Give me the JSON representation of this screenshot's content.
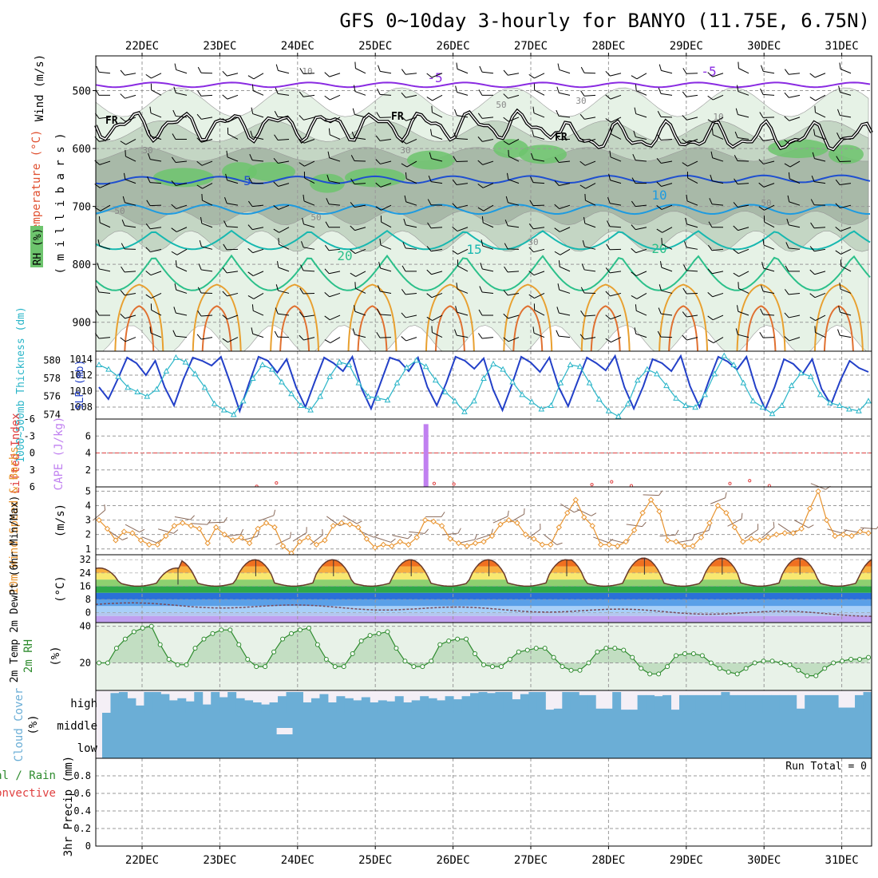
{
  "title": "GFS 0~10day 3-hourly for BANYO (11.75E, 6.75N)",
  "date_labels": [
    "22DEC",
    "23DEC",
    "24DEC",
    "25DEC",
    "26DEC",
    "27DEC",
    "28DEC",
    "29DEC",
    "30DEC",
    "31DEC"
  ],
  "colors": {
    "rh_light": "#e6f2e6",
    "rh_mid": "#c4d6c4",
    "rh_dark": "#a8b9a8",
    "rh_green": "#6dc46d",
    "temp_purple": "#8a2be2",
    "temp_blue_dark": "#1f4fd0",
    "temp_blue": "#1e9be0",
    "temp_teal": "#17b8b0",
    "temp_green": "#2cc08a",
    "temp_orange": "#e8a030",
    "slp": "#2340c8",
    "thickness": "#2ab5c8",
    "lifted": "#e04040",
    "cape": "#c080f0",
    "wind": "#e89430",
    "rh2m": "#2e8b2e",
    "cloud": "#6baed6",
    "precip_green": "#2e8b2e"
  },
  "upper": {
    "ylabel_parts": [
      "RH (%)",
      "Temperature (°C)",
      "Wind (m/s)"
    ],
    "ylabel_unit": "( m i l l i b a r s )",
    "pressure_ticks": [
      500,
      600,
      700,
      800,
      900
    ],
    "ylim": [
      440,
      950
    ],
    "freezing_label": "FR",
    "contour_labels": [
      "-5",
      "-5",
      "5",
      "10",
      "10",
      "15",
      "20",
      "20"
    ],
    "rh_contour_labels": [
      "10",
      "30",
      "30",
      "50",
      "50",
      "50",
      "30",
      "10",
      "50",
      "30"
    ],
    "isotherms": [
      {
        "name": "-5",
        "base_hpa": 490,
        "amp": 4
      },
      {
        "name": "5",
        "base_hpa": 655,
        "amp": 6
      },
      {
        "name": "10",
        "base_hpa": 705,
        "amp": 8
      },
      {
        "name": "15",
        "base_hpa": 758,
        "amp": 16
      },
      {
        "name": "20",
        "base_hpa": 815,
        "amp": 30
      }
    ]
  },
  "slp_panel": {
    "ylabel_left": "1000~500mb Thickness (dm)",
    "ylabel_right": "SLP (mb)",
    "left_ticks": [
      574,
      576,
      578,
      580
    ],
    "right_ticks": [
      1008,
      1010,
      1012,
      1014
    ],
    "slp_range": [
      1006.5,
      1015
    ],
    "thickness_range": [
      573.5,
      581
    ],
    "slp_values": [
      1010.5,
      1009,
      1011.5,
      1014.2,
      1013.5,
      1012,
      1013.8,
      1010.5,
      1008.2,
      1011.5,
      1014.2,
      1013.8,
      1013.2,
      1014.3,
      1011,
      1007.5,
      1011,
      1014.3,
      1013.8,
      1012.3,
      1014,
      1010.5,
      1008,
      1011.2,
      1014.2,
      1013.5,
      1012.5,
      1014.3,
      1010.3,
      1007.8,
      1011,
      1014.2,
      1013.8,
      1012.5,
      1014.2,
      1010.5,
      1008.2,
      1011,
      1014.3,
      1013.8,
      1012.8,
      1014.1,
      1010.2,
      1007.6,
      1010.8,
      1014.3,
      1013.6,
      1012.4,
      1014.2,
      1010.5,
      1008.1,
      1011.2,
      1014.2,
      1013.5,
      1012.6,
      1014.4,
      1010.5,
      1007.8,
      1010.6,
      1014,
      1013.5,
      1012.5,
      1014.4,
      1010.6,
      1008,
      1011.3,
      1014.3,
      1013.7,
      1012.7,
      1014.3,
      1010.4,
      1007.7,
      1010.5,
      1014,
      1013.4,
      1012.2,
      1014,
      1010.3,
      1008.3,
      1011.3,
      1013.8,
      1012.9,
      1012.4
    ],
    "thickness_values": [
      579.5,
      579,
      578.2,
      577,
      576.5,
      576,
      576.8,
      578.8,
      580.3,
      579.8,
      578.5,
      577,
      575.2,
      574.5,
      574,
      575.5,
      578,
      579.5,
      579,
      577.6,
      576.3,
      575,
      574.5,
      576,
      578.2,
      579.8,
      579.5,
      577.5,
      576,
      575.8,
      575.6,
      577.5,
      579.2,
      580,
      579.3,
      577.8,
      576.5,
      575.5,
      574.3,
      575.5,
      578,
      579.6,
      579,
      577.6,
      576.2,
      575.4,
      574.6,
      575,
      577.5,
      579.5,
      579.3,
      577.5,
      575.7,
      574.4,
      573.8,
      575.2,
      577.8,
      579,
      578.5,
      577.2,
      575.8,
      575,
      574.8,
      576.2,
      578.5,
      580.5,
      579.5,
      577.5,
      575.5,
      574.8,
      574.1,
      575,
      577.2,
      578.6,
      578.2,
      576.2,
      575.3,
      575,
      574.6,
      574.4,
      575.5
    ]
  },
  "cape_panel": {
    "ylabel_left": "Lifted Index",
    "ylabel_right": "CAPE (J/kg)",
    "left_ticks": [
      "-6",
      "-3",
      "0",
      "3",
      "6"
    ],
    "right_ticks": [
      "2",
      "4",
      "6"
    ],
    "cape_bars": [
      {
        "index": 17,
        "value": 7.4
      }
    ],
    "lifted_index_points": [
      [
        8,
        5.9
      ],
      [
        9,
        5.3
      ],
      [
        17,
        5.4
      ],
      [
        18,
        5.5
      ],
      [
        25,
        5.6
      ],
      [
        26,
        5.1
      ],
      [
        27,
        5.8
      ],
      [
        32,
        5.4
      ],
      [
        33,
        4.9
      ],
      [
        34,
        5.8
      ],
      [
        41,
        5.8
      ],
      [
        42,
        5.0
      ],
      [
        43,
        5.8
      ]
    ]
  },
  "wind_panel": {
    "ylabel": "10m Wind Speed & Barbs",
    "unit": "(m/s)",
    "ticks": [
      1,
      2,
      3,
      4,
      5
    ],
    "ylim": [
      0.6,
      5.3
    ],
    "values": [
      3,
      2.4,
      1.6,
      2.2,
      2.1,
      1.6,
      1.3,
      1.3,
      1.9,
      2.6,
      2.8,
      2.6,
      2.4,
      1.4,
      2.5,
      2.0,
      1.6,
      1.8,
      1.4,
      2.4,
      2.8,
      2.5,
      1.2,
      0.7,
      1.5,
      1.8,
      1.3,
      1.6,
      2.6,
      2.8,
      2.7,
      2.5,
      1.7,
      1.1,
      1.3,
      1.2,
      1.5,
      1.3,
      1.8,
      3.0,
      2.9,
      2.6,
      1.7,
      1.4,
      1.2,
      1.4,
      1.5,
      1.9,
      2.7,
      3.0,
      2.8,
      2.0,
      1.7,
      1.3,
      1.3,
      2.5,
      3.5,
      4.4,
      3.2,
      2.6,
      1.3,
      1.3,
      1.2,
      1.5,
      2.3,
      3.5,
      4.4,
      3.6,
      1.6,
      1.5,
      1.2,
      1.2,
      1.8,
      2.8,
      4.0,
      3.5,
      2.5,
      1.5,
      1.7,
      1.6,
      1.8,
      2.0,
      2.1,
      2.1,
      2.4,
      3.8,
      5.0,
      3.0,
      1.9,
      2.0,
      1.9,
      2.2,
      2.1
    ]
  },
  "temp_panel": {
    "ylabel": "2m Temp 2m DewPt (6hr Min/Max)",
    "unit": "(°C)",
    "ticks": [
      0,
      8,
      16,
      24,
      32
    ],
    "ylim": [
      -6,
      35
    ],
    "max_per_day": [
      27,
      32,
      32,
      32,
      32,
      32,
      33,
      33,
      33,
      33
    ],
    "min_per_day": [
      18,
      18,
      18,
      18,
      18,
      18,
      18,
      18,
      18,
      18
    ],
    "dewpoint_note": "dewpoint falls from about 5 to -1 over the period"
  },
  "rh_panel": {
    "ylabel": "2m RH",
    "unit": "(%)",
    "ticks": [
      20,
      40
    ],
    "ylim": [
      5,
      42
    ],
    "values": [
      20,
      20,
      28,
      33,
      37,
      39,
      40,
      30,
      22,
      19,
      19,
      28,
      33,
      36,
      38,
      38,
      30,
      22,
      18,
      18,
      26,
      33,
      36,
      38,
      39,
      30,
      22,
      18,
      18,
      25,
      32,
      35,
      36,
      37,
      28,
      21,
      18,
      18,
      21,
      30,
      32,
      33,
      33,
      25,
      19,
      18,
      18,
      22,
      26,
      27,
      28,
      28,
      23,
      18,
      16,
      16,
      20,
      26,
      28,
      28,
      27,
      23,
      17,
      14,
      14,
      18,
      24,
      25,
      25,
      24,
      20,
      17,
      15,
      14,
      17,
      20,
      21,
      21,
      20,
      19,
      16,
      13,
      13,
      17,
      20,
      21,
      22,
      22,
      23
    ]
  },
  "cloud_panel": {
    "ylabel": "Cloud Cover",
    "unit": "(%)",
    "levels": [
      "high",
      "middle",
      "low"
    ],
    "high_cover": [
      0,
      0.95,
      1,
      0.7,
      0.35,
      1,
      1,
      0.9,
      0.6,
      0.7,
      0.55,
      1,
      0.4,
      1,
      0.75,
      1,
      0.7,
      0.6,
      0.5,
      0.4,
      0.5,
      0.8,
      1,
      1,
      0.5,
      0.7,
      0.9,
      0.5,
      0.8,
      0.7,
      0.6,
      0.75,
      0.5,
      0.6,
      0.55,
      0.8,
      0.5,
      0.6,
      0.8,
      0.7,
      0.6,
      0.8,
      0.65,
      0.8,
      0.95,
      1,
      0.95,
      1,
      1,
      0.65,
      0.9,
      1,
      1,
      0.15,
      0.2,
      1,
      1,
      0.85,
      0.85,
      0.2,
      0.2,
      1,
      0.15,
      0.15,
      0.85,
      0.85,
      0.8,
      0.85,
      0.15,
      0.85,
      0.85,
      0.85,
      0.85,
      0.85,
      1,
      0.85,
      0.85,
      0.85,
      0.85,
      0.85,
      0.85,
      0.85,
      0.85,
      0.2,
      0.85,
      0.85,
      0.85,
      0.85,
      0.25,
      0.25,
      0.85,
      1
    ],
    "middle_gaps": [
      20,
      21
    ]
  },
  "precip_panel": {
    "ylabel_left": "Total / Rain",
    "ylabel_left2": "Convective",
    "ylabel_right": "3hr Precip (mm)",
    "ticks": [
      "0",
      "0.2",
      "0.4",
      "0.6",
      "0.8"
    ],
    "ylim": [
      0,
      1
    ],
    "run_total_label": "Run Total = 0",
    "values": []
  }
}
